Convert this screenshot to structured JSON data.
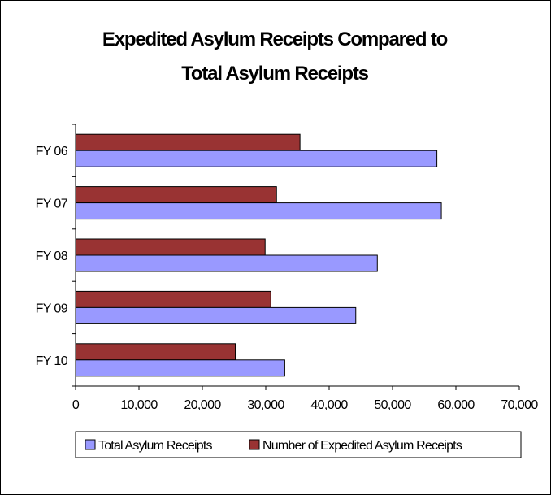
{
  "chart_data": {
    "type": "bar",
    "orientation": "horizontal",
    "title_lines": [
      "Expedited Asylum Receipts Compared to",
      "Total Asylum Receipts"
    ],
    "categories": [
      "FY 06",
      "FY 07",
      "FY 08",
      "FY 09",
      "FY 10"
    ],
    "series": [
      {
        "name": "Number of Expedited Asylum Receipts",
        "color": "#993333",
        "values": [
          35400,
          31700,
          29900,
          30800,
          25200
        ]
      },
      {
        "name": "Total Asylum Receipts",
        "color": "#9999ff",
        "values": [
          57000,
          57700,
          47600,
          44200,
          33000
        ]
      }
    ],
    "x_ticks": [
      "0",
      "10,000",
      "20,000",
      "30,000",
      "40,000",
      "50,000",
      "60,000",
      "70,000"
    ],
    "xlim": [
      0,
      70000
    ],
    "grid": false,
    "legend": {
      "position": "bottom",
      "entries": [
        {
          "label": "Total Asylum Receipts",
          "color": "#9999ff"
        },
        {
          "label": "Number of Expedited Asylum Receipts",
          "color": "#993333"
        }
      ]
    },
    "xlabel": "",
    "ylabel": ""
  }
}
